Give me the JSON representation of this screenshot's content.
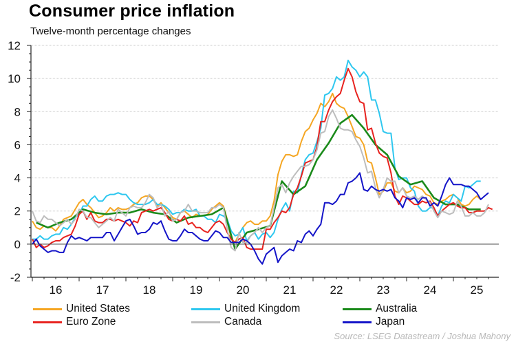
{
  "chart_data": {
    "type": "line",
    "title": "Consumer price inflation",
    "subtitle": "Twelve-month percentage changes",
    "xlabel": "",
    "ylabel": "",
    "ylim": [
      -2,
      12
    ],
    "yticks": [
      -2,
      0,
      2,
      4,
      6,
      8,
      10,
      12
    ],
    "x_start": "2016-01",
    "x_frequency": "monthly",
    "xtick_labels": [
      "16",
      "17",
      "18",
      "19",
      "20",
      "21",
      "22",
      "23",
      "24",
      "25"
    ],
    "grid": "horizontal-dotted",
    "legend_position": "bottom",
    "source": "Source: LSEG Datastream / Joshua Mahony",
    "series": [
      {
        "name": "United States",
        "color": "#f5a623",
        "frequency": "monthly",
        "values": [
          1.4,
          1.0,
          0.9,
          1.1,
          1.0,
          1.0,
          0.8,
          1.1,
          1.5,
          1.6,
          1.7,
          2.1,
          2.5,
          2.7,
          2.4,
          2.2,
          1.9,
          1.6,
          1.7,
          1.9,
          2.2,
          2.0,
          2.2,
          2.1,
          2.1,
          2.2,
          2.4,
          2.5,
          2.8,
          2.9,
          2.9,
          2.7,
          2.3,
          2.5,
          2.2,
          1.9,
          1.6,
          1.5,
          1.9,
          2.0,
          1.8,
          1.6,
          1.8,
          1.7,
          1.7,
          1.8,
          2.1,
          2.3,
          2.5,
          2.3,
          1.5,
          0.3,
          0.1,
          0.6,
          1.0,
          1.3,
          1.4,
          1.2,
          1.2,
          1.4,
          1.4,
          1.7,
          2.6,
          4.2,
          5.0,
          5.4,
          5.4,
          5.3,
          5.4,
          6.2,
          6.8,
          7.0,
          7.5,
          7.9,
          8.5,
          8.3,
          8.6,
          9.1,
          8.5,
          8.3,
          8.2,
          7.7,
          7.1,
          6.5,
          6.4,
          6.0,
          5.0,
          4.9,
          4.0,
          3.0,
          3.2,
          3.7,
          3.7,
          3.2,
          3.1,
          3.4,
          3.1,
          3.2,
          3.5,
          3.4,
          3.3,
          3.0,
          2.9,
          2.5,
          2.4,
          2.6,
          2.7,
          2.9,
          3.0,
          2.8,
          2.4,
          2.3,
          2.4,
          2.7,
          2.9,
          2.7
        ]
      },
      {
        "name": "United Kingdom",
        "color": "#2ec7ef",
        "frequency": "monthly",
        "values": [
          0.3,
          0.3,
          0.5,
          0.3,
          0.3,
          0.5,
          0.6,
          0.6,
          1.0,
          0.9,
          1.2,
          1.6,
          1.8,
          2.3,
          2.3,
          2.7,
          2.9,
          2.6,
          2.6,
          2.9,
          3.0,
          3.0,
          3.1,
          3.0,
          3.0,
          2.7,
          2.5,
          2.4,
          2.4,
          2.4,
          2.5,
          2.7,
          2.4,
          2.4,
          2.3,
          2.1,
          1.8,
          1.9,
          1.9,
          2.1,
          2.0,
          2.0,
          2.1,
          1.7,
          1.7,
          1.5,
          1.5,
          1.3,
          1.8,
          1.7,
          1.5,
          0.8,
          0.5,
          0.6,
          1.0,
          0.2,
          0.5,
          0.7,
          0.3,
          0.6,
          0.7,
          0.4,
          0.7,
          1.5,
          2.1,
          2.5,
          2.0,
          3.2,
          3.1,
          4.2,
          5.1,
          5.4,
          5.5,
          6.2,
          7.0,
          9.0,
          9.1,
          9.4,
          10.1,
          9.9,
          10.1,
          11.1,
          10.7,
          10.5,
          10.1,
          10.4,
          10.1,
          8.7,
          8.7,
          7.9,
          6.8,
          6.7,
          6.7,
          4.6,
          3.9,
          4.0,
          4.0,
          3.4,
          3.2,
          2.3,
          2.0,
          2.0,
          2.2,
          2.2,
          1.7,
          2.3,
          2.6,
          2.5,
          3.0,
          2.8,
          2.6,
          3.5,
          3.4,
          3.6,
          3.8,
          3.8
        ]
      },
      {
        "name": "Australia",
        "color": "#1a8a1a",
        "frequency": "quarterly",
        "values": [
          1.3,
          1.0,
          1.3,
          1.5,
          2.1,
          1.9,
          1.8,
          1.9,
          1.9,
          2.1,
          1.9,
          1.8,
          1.3,
          1.6,
          1.7,
          1.8,
          2.2,
          -0.3,
          0.7,
          0.9,
          1.1,
          3.8,
          3.0,
          3.5,
          5.1,
          6.1,
          7.3,
          7.8,
          7.0,
          6.0,
          5.4,
          4.1,
          3.6,
          3.8,
          2.8,
          2.4,
          2.4,
          2.1,
          2.1
        ]
      },
      {
        "name": "Euro Zone",
        "color": "#e8231f",
        "frequency": "monthly",
        "values": [
          0.3,
          -0.2,
          0.0,
          -0.2,
          -0.1,
          0.1,
          0.2,
          0.2,
          0.4,
          0.5,
          0.6,
          1.1,
          1.8,
          2.0,
          1.5,
          1.9,
          1.4,
          1.3,
          1.3,
          1.5,
          1.5,
          1.4,
          1.5,
          1.4,
          1.3,
          1.1,
          1.4,
          1.3,
          1.9,
          2.0,
          2.1,
          2.0,
          2.1,
          2.2,
          1.9,
          1.5,
          1.4,
          1.5,
          1.4,
          1.7,
          1.2,
          1.3,
          1.0,
          1.0,
          0.8,
          0.7,
          1.0,
          1.3,
          1.4,
          1.2,
          0.7,
          0.3,
          0.1,
          0.3,
          0.4,
          -0.2,
          -0.3,
          -0.3,
          -0.3,
          -0.3,
          0.9,
          0.9,
          1.3,
          1.6,
          2.0,
          1.9,
          2.2,
          3.0,
          3.4,
          4.1,
          4.9,
          5.0,
          5.1,
          5.9,
          7.4,
          7.4,
          8.1,
          8.6,
          8.9,
          9.1,
          9.9,
          10.6,
          10.1,
          9.2,
          8.6,
          8.5,
          6.9,
          7.0,
          6.1,
          5.5,
          5.3,
          5.2,
          4.3,
          2.9,
          2.4,
          2.9,
          2.8,
          2.6,
          2.4,
          2.4,
          2.6,
          2.5,
          2.6,
          2.2,
          1.7,
          2.0,
          2.2,
          2.4,
          2.5,
          2.3,
          2.2,
          2.2,
          1.9,
          1.9,
          2.0,
          2.0,
          2.0,
          2.2,
          2.1
        ]
      },
      {
        "name": "Canada",
        "color": "#bdbdbd",
        "frequency": "monthly",
        "values": [
          2.0,
          1.4,
          1.3,
          1.7,
          1.5,
          1.5,
          1.3,
          1.1,
          1.3,
          1.5,
          1.2,
          1.5,
          2.1,
          2.0,
          1.6,
          1.6,
          1.3,
          1.0,
          1.2,
          1.4,
          1.6,
          1.4,
          2.1,
          1.9,
          1.7,
          2.2,
          2.3,
          2.2,
          2.2,
          2.5,
          3.0,
          2.8,
          2.2,
          2.4,
          1.7,
          2.0,
          1.4,
          1.5,
          1.9,
          2.0,
          2.4,
          2.0,
          2.0,
          1.9,
          1.9,
          1.9,
          2.2,
          2.2,
          2.4,
          2.2,
          0.9,
          -0.2,
          -0.4,
          0.7,
          0.1,
          0.1,
          0.5,
          0.7,
          1.0,
          0.7,
          1.0,
          1.1,
          2.2,
          3.4,
          3.6,
          3.1,
          3.7,
          4.1,
          4.4,
          4.7,
          4.7,
          4.8,
          5.1,
          5.7,
          6.7,
          6.8,
          7.7,
          8.1,
          7.6,
          7.0,
          6.9,
          6.9,
          6.8,
          6.3,
          5.9,
          5.2,
          4.3,
          4.4,
          3.4,
          2.8,
          3.3,
          4.0,
          3.8,
          3.8,
          3.1,
          3.4,
          2.9,
          2.8,
          2.9,
          2.7,
          2.9,
          2.7,
          2.5,
          2.0,
          1.6,
          2.0,
          1.9,
          1.8,
          1.9,
          2.6,
          2.3,
          1.7,
          1.7,
          1.9,
          1.7,
          1.7,
          1.9,
          2.4
        ]
      },
      {
        "name": "Japan",
        "color": "#1414c8",
        "frequency": "monthly",
        "values": [
          0.0,
          0.3,
          -0.1,
          -0.3,
          -0.5,
          -0.4,
          -0.4,
          -0.5,
          -0.5,
          0.1,
          0.5,
          0.3,
          0.4,
          0.3,
          0.2,
          0.4,
          0.4,
          0.4,
          0.4,
          0.7,
          0.7,
          0.2,
          0.6,
          1.0,
          1.4,
          1.5,
          1.1,
          0.6,
          0.7,
          0.7,
          0.9,
          1.3,
          1.2,
          1.4,
          0.8,
          0.3,
          0.2,
          0.2,
          0.5,
          0.9,
          0.7,
          0.7,
          0.5,
          0.3,
          0.2,
          0.2,
          0.5,
          0.8,
          0.7,
          0.4,
          0.4,
          0.1,
          0.1,
          0.1,
          0.3,
          0.2,
          0.0,
          -0.4,
          -0.9,
          -1.2,
          -0.6,
          -0.4,
          -0.2,
          -1.1,
          -0.7,
          -0.5,
          -0.3,
          -0.4,
          0.2,
          0.1,
          0.6,
          0.8,
          0.5,
          0.9,
          1.2,
          2.5,
          2.5,
          2.4,
          2.6,
          3.0,
          3.0,
          3.7,
          3.8,
          4.0,
          4.3,
          3.3,
          3.2,
          3.5,
          3.3,
          3.2,
          3.3,
          3.2,
          3.3,
          2.8,
          2.6,
          2.2,
          2.8,
          2.7,
          2.8,
          2.5,
          2.8,
          2.8,
          2.3,
          2.5,
          2.3,
          2.9,
          3.6,
          4.0,
          3.6,
          3.6,
          3.6,
          3.5,
          3.5,
          3.3,
          3.1,
          2.7,
          2.9,
          3.1
        ]
      }
    ]
  },
  "legend": {
    "items": [
      {
        "label": "United States",
        "color": "#f5a623"
      },
      {
        "label": "United Kingdom",
        "color": "#2ec7ef"
      },
      {
        "label": "Australia",
        "color": "#1a8a1a"
      },
      {
        "label": "Euro Zone",
        "color": "#e8231f"
      },
      {
        "label": "Canada",
        "color": "#bdbdbd"
      },
      {
        "label": "Japan",
        "color": "#1414c8"
      }
    ]
  }
}
